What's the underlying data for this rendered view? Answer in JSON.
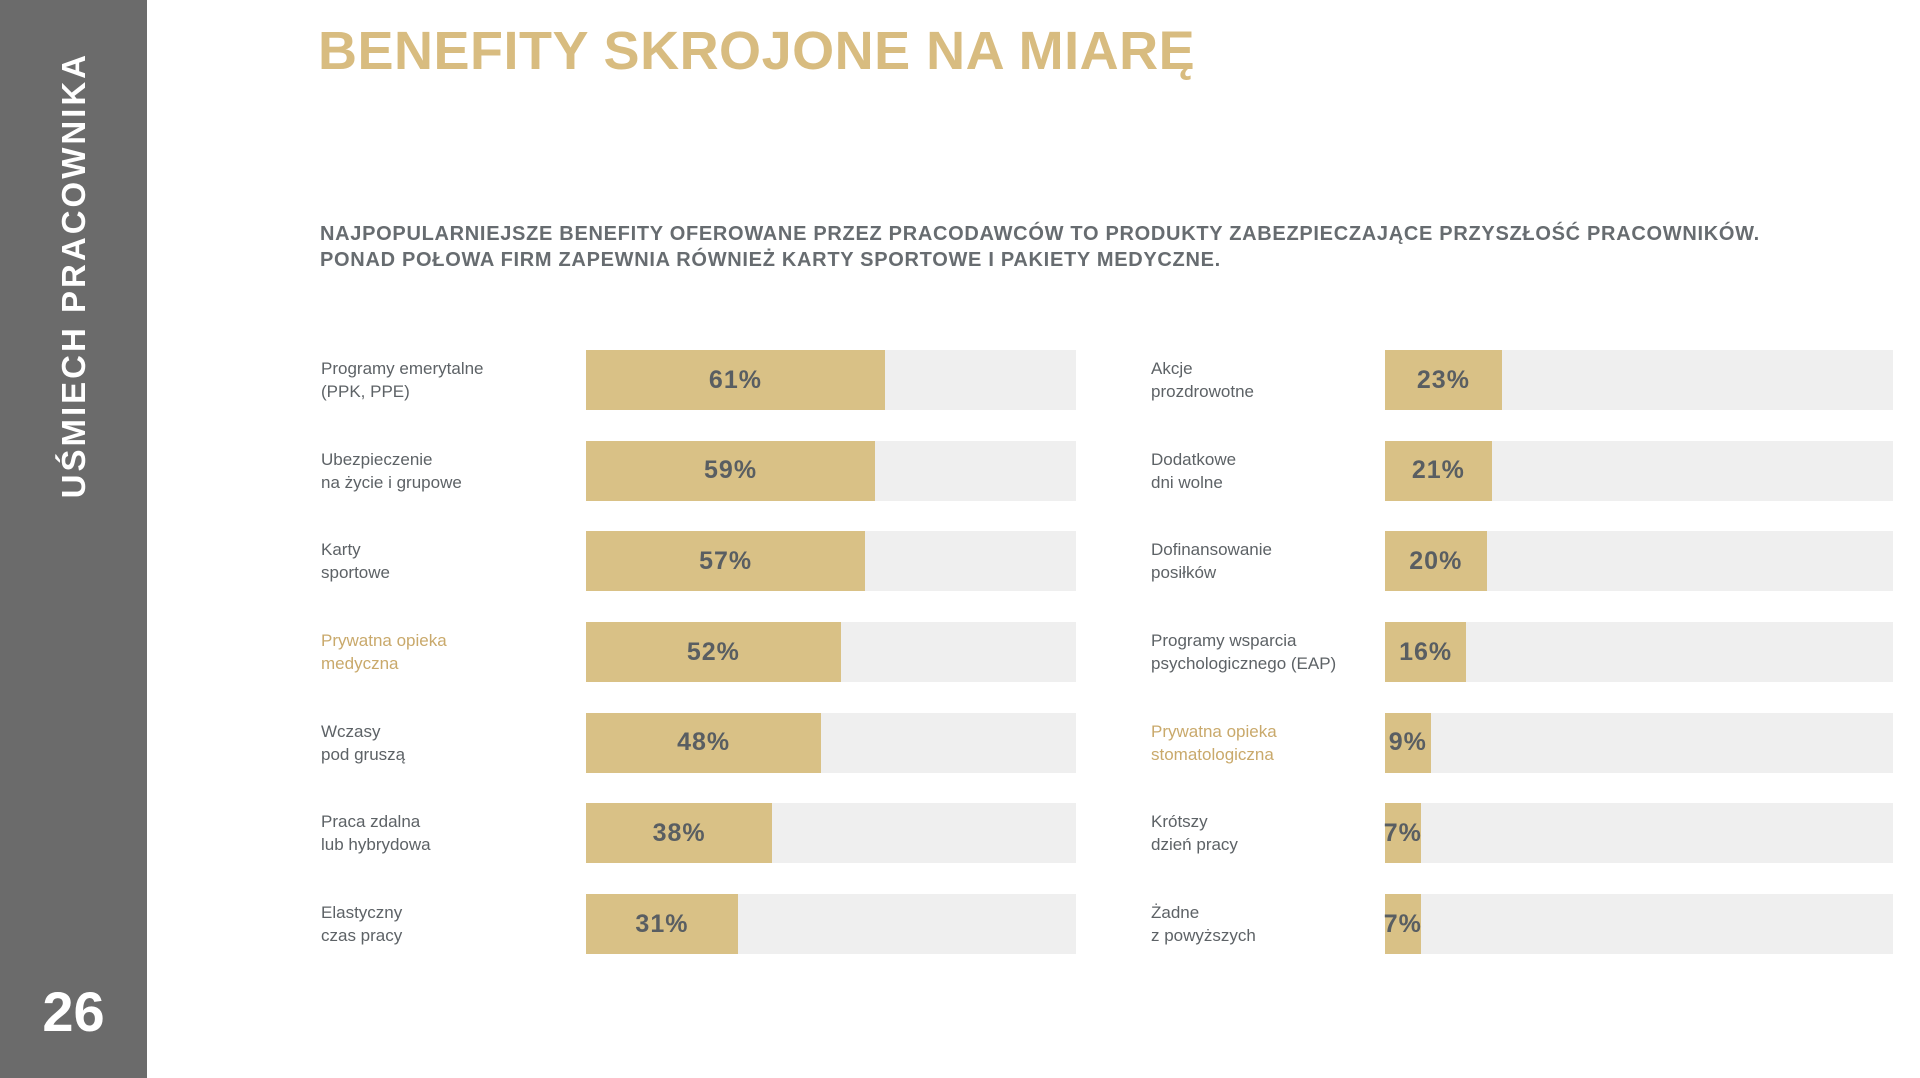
{
  "sidebar": {
    "vertical_label": "UŚMIECH PRACOWNIKA",
    "page_number": "26",
    "background_color": "#6b6b6b",
    "text_color": "#ffffff"
  },
  "header": {
    "title": "BENEFITY SKROJONE NA MIARĘ",
    "title_color": "#d8bc80",
    "subtitle_line1": "NAJPOPULARNIEJSZE BENEFITY OFEROWANE PRZEZ PRACODAWCÓW TO PRODUKTY ZABEZPIECZAJĄCE PRZYSZŁOŚĆ PRACOWNIKÓW.",
    "subtitle_line2": "PONAD POŁOWA FIRM ZAPEWNIA RÓWNIEŻ KARTY SPORTOWE I PAKIETY MEDYCZNE.",
    "subtitle_color": "#676c70"
  },
  "chart_data": {
    "type": "bar",
    "orientation": "horizontal",
    "unit": "%",
    "xlim": [
      0,
      100
    ],
    "bar_color": "#d9c186",
    "track_color": "#efefef",
    "value_text_color": "#595e62",
    "label_text_color": "#5d6266",
    "highlight_label_color": "#c9a96b",
    "grid": false,
    "legend": false,
    "columns": [
      {
        "items": [
          {
            "label_lines": [
              "Programy emerytalne",
              "(PPK, PPE)"
            ],
            "value": 61,
            "display": "61%",
            "highlighted": false
          },
          {
            "label_lines": [
              "Ubezpieczenie",
              "na życie i grupowe"
            ],
            "value": 59,
            "display": "59%",
            "highlighted": false
          },
          {
            "label_lines": [
              "Karty",
              "sportowe"
            ],
            "value": 57,
            "display": "57%",
            "highlighted": false
          },
          {
            "label_lines": [
              "Prywatna opieka",
              "medyczna"
            ],
            "value": 52,
            "display": "52%",
            "highlighted": true
          },
          {
            "label_lines": [
              "Wczasy",
              "pod gruszą"
            ],
            "value": 48,
            "display": "48%",
            "highlighted": false
          },
          {
            "label_lines": [
              "Praca zdalna",
              "lub hybrydowa"
            ],
            "value": 38,
            "display": "38%",
            "highlighted": false
          },
          {
            "label_lines": [
              "Elastyczny",
              "czas pracy"
            ],
            "value": 31,
            "display": "31%",
            "highlighted": false
          }
        ]
      },
      {
        "items": [
          {
            "label_lines": [
              "Akcje",
              "prozdrowotne"
            ],
            "value": 23,
            "display": "23%",
            "highlighted": false
          },
          {
            "label_lines": [
              "Dodatkowe",
              "dni wolne"
            ],
            "value": 21,
            "display": "21%",
            "highlighted": false
          },
          {
            "label_lines": [
              "Dofinansowanie",
              "posiłków"
            ],
            "value": 20,
            "display": "20%",
            "highlighted": false
          },
          {
            "label_lines": [
              "Programy wsparcia",
              "psychologicznego (EAP)"
            ],
            "value": 16,
            "display": "16%",
            "highlighted": false
          },
          {
            "label_lines": [
              "Prywatna opieka",
              "stomatologiczna"
            ],
            "value": 9,
            "display": "9%",
            "highlighted": true
          },
          {
            "label_lines": [
              "Krótszy",
              "dzień pracy"
            ],
            "value": 7,
            "display": "7%",
            "highlighted": false
          },
          {
            "label_lines": [
              "Żadne",
              "z powyższych"
            ],
            "value": 7,
            "display": "7%",
            "highlighted": false
          }
        ]
      }
    ]
  }
}
